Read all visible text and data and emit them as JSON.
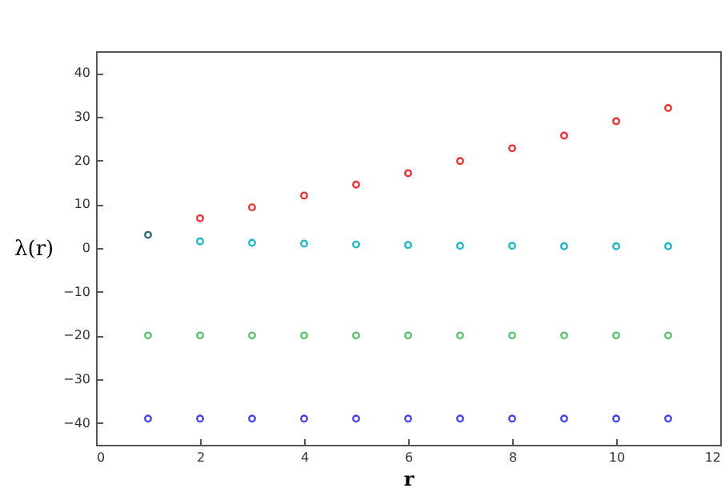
{
  "chart_data": {
    "type": "scatter",
    "xlabel": "r",
    "ylabel": "λ(r)",
    "xlim": [
      0,
      12
    ],
    "ylim": [
      -45,
      45
    ],
    "xticks": [
      0,
      2,
      4,
      6,
      8,
      10,
      12
    ],
    "yticks": [
      -40,
      -30,
      -20,
      -10,
      0,
      10,
      20,
      30,
      40
    ],
    "grid": false,
    "legend": false,
    "marker": "circle",
    "series": [
      {
        "color": "#306868",
        "x": [
          1
        ],
        "values": [
          3
        ]
      },
      {
        "color": "#e03434",
        "x": [
          2,
          3,
          4,
          5,
          6,
          7,
          8,
          9,
          10,
          11
        ],
        "values": [
          6.8,
          9.3,
          12,
          14.5,
          17.1,
          19.9,
          22.8,
          25.7,
          29,
          32
        ]
      },
      {
        "color": "#20b4c4",
        "x": [
          2,
          3,
          4,
          5,
          6,
          7,
          8,
          9,
          10,
          11
        ],
        "values": [
          1.5,
          1.2,
          1,
          0.8,
          0.7,
          0.5,
          0.5,
          0.4,
          0.4,
          0.4
        ]
      },
      {
        "color": "#5cc070",
        "x": [
          1,
          2,
          3,
          4,
          5,
          6,
          7,
          8,
          9,
          10,
          11
        ],
        "values": [
          -20,
          -20,
          -20,
          -20,
          -20,
          -20,
          -20,
          -20,
          -20,
          -20,
          -20
        ]
      },
      {
        "color": "#4a44e0",
        "x": [
          1,
          2,
          3,
          4,
          5,
          6,
          7,
          8,
          9,
          10,
          11
        ],
        "values": [
          -39,
          -39,
          -39,
          -39,
          -39,
          -39,
          -39,
          -39,
          -39,
          -39,
          -39
        ]
      }
    ]
  }
}
